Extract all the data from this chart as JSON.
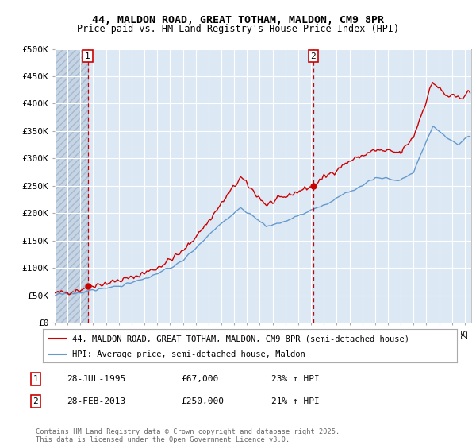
{
  "title": "44, MALDON ROAD, GREAT TOTHAM, MALDON, CM9 8PR",
  "subtitle": "Price paid vs. HM Land Registry's House Price Index (HPI)",
  "ylabel_ticks": [
    "£0",
    "£50K",
    "£100K",
    "£150K",
    "£200K",
    "£250K",
    "£300K",
    "£350K",
    "£400K",
    "£450K",
    "£500K"
  ],
  "ytick_values": [
    0,
    50000,
    100000,
    150000,
    200000,
    250000,
    300000,
    350000,
    400000,
    450000,
    500000
  ],
  "xlim": [
    1993.0,
    2025.5
  ],
  "ylim": [
    0,
    500000
  ],
  "transaction1": {
    "date_x": 1995.57,
    "price": 67000,
    "label": "1",
    "date_str": "28-JUL-1995",
    "price_str": "£67,000",
    "hpi_str": "23% ↑ HPI"
  },
  "transaction2": {
    "date_x": 2013.16,
    "price": 250000,
    "label": "2",
    "date_str": "28-FEB-2013",
    "price_str": "£250,000",
    "hpi_str": "21% ↑ HPI"
  },
  "legend_line1": "44, MALDON ROAD, GREAT TOTHAM, MALDON, CM9 8PR (semi-detached house)",
  "legend_line2": "HPI: Average price, semi-detached house, Maldon",
  "footer": "Contains HM Land Registry data © Crown copyright and database right 2025.\nThis data is licensed under the Open Government Licence v3.0.",
  "hatch_end_x": 1995.57,
  "plot_bg": "#dce9f5",
  "red_color": "#cc0000",
  "blue_color": "#6699cc",
  "grid_color": "#ffffff"
}
